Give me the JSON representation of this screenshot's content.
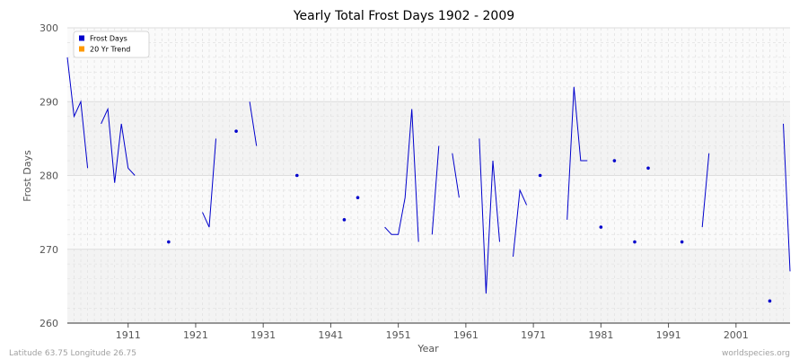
{
  "chart_data": {
    "type": "line",
    "title": "Yearly Total Frost Days 1902 - 2009",
    "xlabel": "Year",
    "ylabel": "Frost Days",
    "xlim": [
      1902,
      2009
    ],
    "ylim": [
      260,
      300
    ],
    "x_ticks": [
      1911,
      1921,
      1931,
      1941,
      1951,
      1961,
      1971,
      1981,
      1991,
      2001
    ],
    "y_ticks": [
      260,
      270,
      280,
      290,
      300
    ],
    "grid": true,
    "legend_position": "top-left",
    "legend": [
      {
        "label": "Frost Days",
        "color": "#0000cc"
      },
      {
        "label": "20 Yr Trend",
        "color": "#ff9900"
      }
    ],
    "series": [
      {
        "name": "Frost Days",
        "color": "#0000cc",
        "segments": [
          [
            [
              1902,
              296
            ],
            [
              1903,
              288
            ],
            [
              1904,
              290
            ],
            [
              1905,
              281
            ]
          ],
          [
            [
              1907,
              287
            ],
            [
              1908,
              289
            ],
            [
              1909,
              279
            ],
            [
              1910,
              287
            ],
            [
              1911,
              281
            ],
            [
              1912,
              280
            ]
          ],
          [
            [
              1917,
              271
            ]
          ],
          [
            [
              1922,
              275
            ],
            [
              1923,
              273
            ],
            [
              1924,
              285
            ]
          ],
          [
            [
              1927,
              286
            ]
          ],
          [
            [
              1929,
              290
            ],
            [
              1930,
              284
            ]
          ],
          [
            [
              1936,
              280
            ]
          ],
          [
            [
              1943,
              274
            ]
          ],
          [
            [
              1945,
              277
            ]
          ],
          [
            [
              1949,
              273
            ],
            [
              1950,
              272
            ],
            [
              1951,
              272
            ],
            [
              1952,
              277
            ],
            [
              1953,
              289
            ],
            [
              1954,
              271
            ]
          ],
          [
            [
              1956,
              272
            ],
            [
              1957,
              284
            ]
          ],
          [
            [
              1959,
              283
            ],
            [
              1960,
              277
            ]
          ],
          [
            [
              1963,
              285
            ],
            [
              1964,
              264
            ],
            [
              1965,
              282
            ],
            [
              1966,
              271
            ]
          ],
          [
            [
              1968,
              269
            ],
            [
              1969,
              278
            ],
            [
              1970,
              276
            ]
          ],
          [
            [
              1972,
              280
            ]
          ],
          [
            [
              1976,
              274
            ],
            [
              1977,
              292
            ],
            [
              1978,
              282
            ],
            [
              1979,
              282
            ]
          ],
          [
            [
              1981,
              273
            ]
          ],
          [
            [
              1983,
              282
            ]
          ],
          [
            [
              1986,
              271
            ]
          ],
          [
            [
              1988,
              281
            ]
          ],
          [
            [
              1993,
              271
            ]
          ],
          [
            [
              1996,
              273
            ],
            [
              1997,
              283
            ]
          ],
          [
            [
              2006,
              263
            ]
          ],
          [
            [
              2008,
              287
            ],
            [
              2009,
              267
            ]
          ]
        ]
      },
      {
        "name": "20 Yr Trend",
        "color": "#ff9900",
        "segments": []
      }
    ]
  },
  "footer": {
    "left": "Latitude 63.75 Longitude 26.75",
    "right": "worldspecies.org"
  }
}
